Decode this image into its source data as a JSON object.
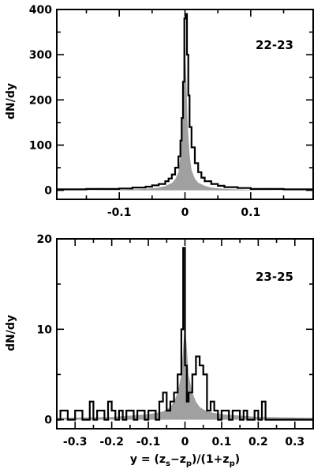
{
  "chart_data": [
    {
      "type": "area",
      "panel_label": "22-23",
      "ylabel": "dN/dy",
      "xlabel": "",
      "xlim": [
        -0.195,
        0.195
      ],
      "ylim": [
        -20,
        400
      ],
      "x_ticks": [
        -0.1,
        0,
        0.1
      ],
      "x_tick_labels": [
        "-0.1",
        "0",
        "0.1"
      ],
      "y_ticks": [
        0,
        100,
        200,
        300,
        400
      ],
      "y_tick_labels": [
        "0",
        "100",
        "200",
        "300",
        "400"
      ],
      "series": [
        {
          "style": "filled-gray",
          "x": [
            -0.195,
            -0.1,
            -0.06,
            -0.04,
            -0.03,
            -0.02,
            -0.015,
            -0.01,
            -0.007,
            -0.004,
            -0.002,
            0.0,
            0.002,
            0.004,
            0.007,
            0.01,
            0.015,
            0.02,
            0.03,
            0.04,
            0.06,
            0.1,
            0.195
          ],
          "y": [
            0,
            1,
            3,
            6,
            9,
            16,
            24,
            40,
            75,
            150,
            250,
            330,
            250,
            150,
            80,
            45,
            26,
            17,
            10,
            6,
            3,
            1,
            0
          ]
        },
        {
          "style": "step-outline",
          "x": [
            -0.195,
            -0.15,
            -0.1,
            -0.08,
            -0.06,
            -0.05,
            -0.04,
            -0.03,
            -0.025,
            -0.02,
            -0.015,
            -0.01,
            -0.007,
            -0.005,
            -0.003,
            -0.001,
            0.001,
            0.003,
            0.005,
            0.007,
            0.01,
            0.015,
            0.02,
            0.025,
            0.03,
            0.04,
            0.05,
            0.06,
            0.08,
            0.1,
            0.15
          ],
          "y": [
            2,
            3,
            4,
            6,
            8,
            11,
            14,
            20,
            26,
            35,
            50,
            75,
            110,
            160,
            240,
            380,
            390,
            300,
            210,
            140,
            95,
            60,
            40,
            28,
            20,
            14,
            10,
            7,
            5,
            3,
            2
          ]
        }
      ]
    },
    {
      "type": "area",
      "panel_label": "23-25",
      "ylabel": "dN/dy",
      "xlabel": "y = (z_s−z_p)/(1+z_p)",
      "xlabel_parts": [
        "y = (z",
        "s",
        "−z",
        "p",
        ")/(1+z",
        "p",
        ")"
      ],
      "xlim": [
        -0.35,
        0.35
      ],
      "ylim": [
        -1,
        20
      ],
      "x_ticks": [
        -0.3,
        -0.2,
        -0.1,
        0,
        0.1,
        0.2,
        0.3
      ],
      "x_tick_labels": [
        "-0.3",
        "-0.2",
        "-0.1",
        "0",
        "0.1",
        "0.2",
        "0.3"
      ],
      "y_ticks": [
        0,
        10,
        20
      ],
      "y_tick_labels": [
        "0",
        "10",
        "20"
      ],
      "series": [
        {
          "style": "filled-gray",
          "x": [
            -0.35,
            -0.2,
            -0.1,
            -0.06,
            -0.04,
            -0.03,
            -0.02,
            -0.01,
            -0.005,
            0.0,
            0.005,
            0.01,
            0.02,
            0.03,
            0.04,
            0.06,
            0.1,
            0.2,
            0.35
          ],
          "y": [
            0.2,
            0.3,
            0.6,
            0.9,
            1.4,
            2.0,
            3.0,
            5.0,
            8.0,
            10.5,
            8.0,
            5.0,
            3.0,
            2.0,
            1.4,
            0.9,
            0.6,
            0.3,
            0.2
          ]
        },
        {
          "style": "step-outline",
          "x": [
            -0.35,
            -0.34,
            -0.33,
            -0.32,
            -0.3,
            -0.28,
            -0.27,
            -0.26,
            -0.25,
            -0.24,
            -0.23,
            -0.22,
            -0.21,
            -0.2,
            -0.19,
            -0.18,
            -0.17,
            -0.16,
            -0.14,
            -0.13,
            -0.12,
            -0.11,
            -0.1,
            -0.09,
            -0.08,
            -0.07,
            -0.06,
            -0.05,
            -0.04,
            -0.03,
            -0.02,
            -0.01,
            -0.005,
            0.0,
            0.005,
            0.01,
            0.02,
            0.03,
            0.04,
            0.05,
            0.06,
            0.07,
            0.08,
            0.09,
            0.1,
            0.11,
            0.12,
            0.13,
            0.14,
            0.15,
            0.16,
            0.17,
            0.18,
            0.19,
            0.2,
            0.21,
            0.22,
            0.23,
            0.35
          ],
          "y": [
            0,
            1,
            1,
            0,
            1,
            0,
            0,
            2,
            0,
            1,
            1,
            0,
            2,
            1,
            0,
            1,
            0,
            1,
            0,
            1,
            1,
            0,
            1,
            1,
            0,
            2,
            3,
            1,
            2,
            3,
            5,
            10,
            19,
            6,
            2,
            3,
            5,
            7,
            6,
            5,
            1,
            2,
            1,
            0,
            1,
            1,
            0,
            1,
            1,
            0,
            1,
            0,
            0,
            1,
            0,
            2,
            0,
            0,
            0
          ]
        }
      ]
    }
  ]
}
